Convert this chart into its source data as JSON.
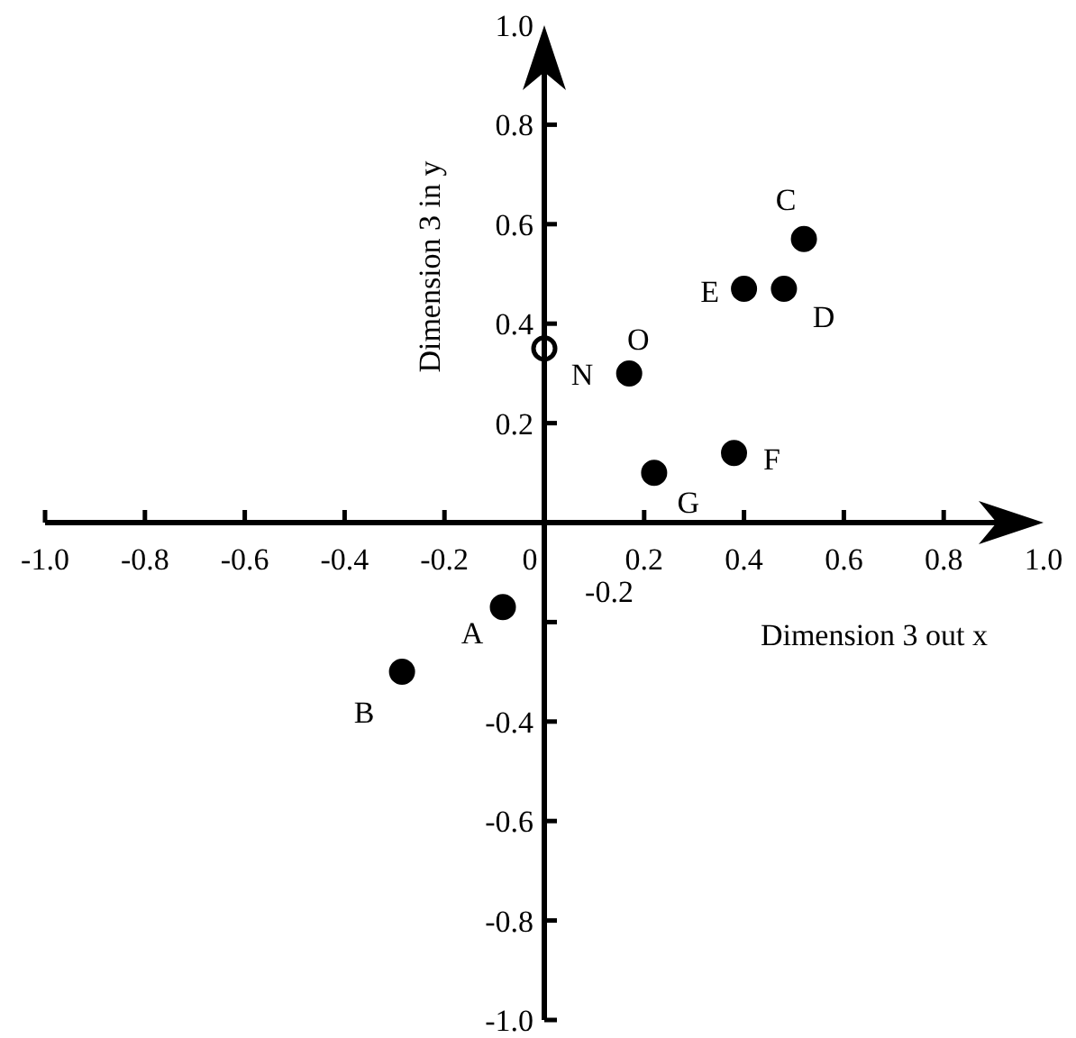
{
  "chart_data": {
    "type": "scatter",
    "xlabel": "Dimension 3 out x",
    "ylabel": "Dimension 3 in y",
    "series": [
      {
        "color": "#000000",
        "x": [
          -0.083,
          -0.285,
          0.52,
          0.48,
          0.4,
          0.38,
          0.22,
          0.17
        ],
        "values": [
          -0.17,
          -0.3,
          0.57,
          0.47,
          0.47,
          0.14,
          0.1,
          0.3
        ]
      },
      {
        "color": "#ffffff",
        "x": [
          0
        ],
        "values": [
          0.35
        ]
      }
    ],
    "annotations": [
      {
        "text": "A",
        "x": -0.083,
        "y": -0.17
      },
      {
        "text": "B",
        "x": -0.285,
        "y": -0.3
      },
      {
        "text": "C",
        "x": 0.52,
        "y": 0.57
      },
      {
        "text": "D",
        "x": 0.48,
        "y": 0.47
      },
      {
        "text": "E",
        "x": 0.4,
        "y": 0.47
      },
      {
        "text": "F",
        "x": 0.38,
        "y": 0.14
      },
      {
        "text": "G",
        "x": 0.22,
        "y": 0.1
      },
      {
        "text": "N",
        "x": 0,
        "y": 0.35
      },
      {
        "text": "O",
        "x": 0.17,
        "y": 0.3
      },
      "-0.2"
    ],
    "xlim": [
      -1,
      1
    ],
    "ylim": [
      -1,
      1
    ],
    "xticks": [
      {
        "value": -1,
        "label": "-1.0"
      },
      -0.8,
      -0.6,
      -0.4,
      -0.2,
      {
        "value": 0,
        "label": "0"
      },
      0.2,
      0.4,
      0.6,
      0.8,
      {
        "value": 1,
        "label": "1.0"
      }
    ],
    "yticks": [
      {
        "value": -1,
        "label": "-1.0"
      },
      -0.8,
      -0.6,
      -0.4,
      {
        "value": -0.2,
        "label": null
      },
      0.2,
      0.4,
      0.6,
      0.8,
      {
        "value": 1,
        "label": "1.0"
      }
    ],
    "marker": "circle"
  }
}
